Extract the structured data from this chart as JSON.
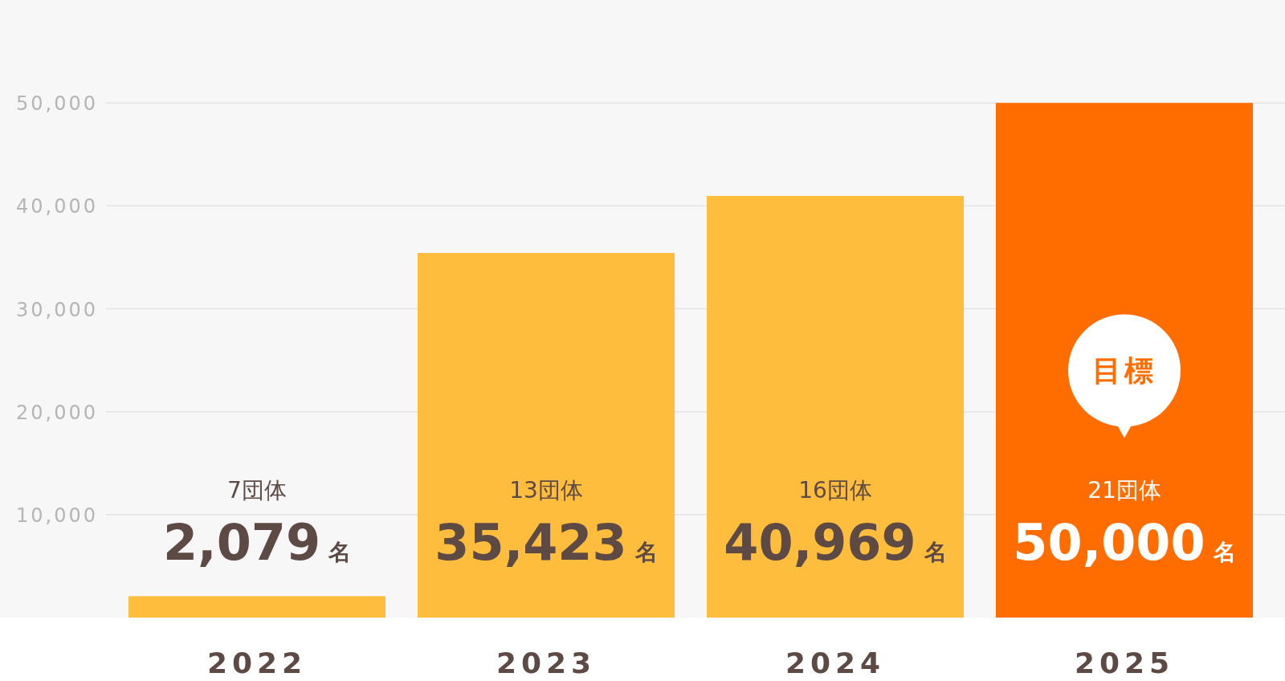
{
  "chart_data": {
    "type": "bar",
    "categories": [
      "2022",
      "2023",
      "2024",
      "2025"
    ],
    "values": [
      2079,
      35423,
      40969,
      50000
    ],
    "colors": [
      "#ffbd3e",
      "#ffbd3e",
      "#ffbd3e",
      "#ff6d00"
    ],
    "value_labels": [
      "2,079 名",
      "35,423 名",
      "40,969 名",
      "50,000 名"
    ],
    "ylim": [
      0,
      60000
    ],
    "yticks": [
      {
        "value": 10000,
        "label": "10,000"
      },
      {
        "value": 20000,
        "label": "20,000"
      },
      {
        "value": 30000,
        "label": "30,000"
      },
      {
        "value": 40000,
        "label": "40,000"
      },
      {
        "value": 50000,
        "label": "50,000"
      }
    ],
    "grid": "y",
    "annotations": [
      "7団体",
      "13団体",
      "16団体",
      "21団体",
      "目標"
    ]
  }
}
